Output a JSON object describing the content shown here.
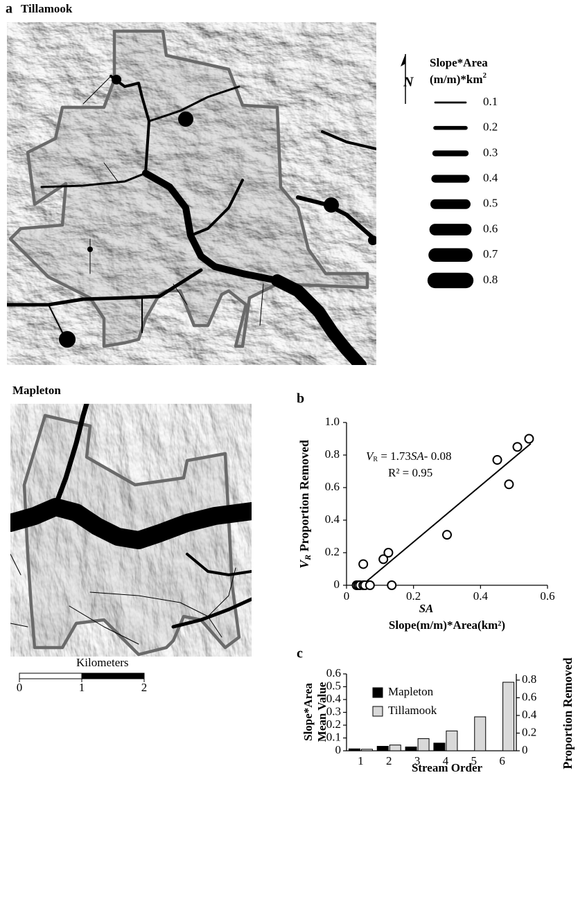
{
  "figure": {
    "panel_a": {
      "label": "a",
      "title": "Tillamook",
      "legend_title": "Slope*Area",
      "legend_unit": "(m/m)*km",
      "legend_unit_sup": "2",
      "legend_values": [
        0.1,
        0.2,
        0.3,
        0.4,
        0.5,
        0.6,
        0.7,
        0.8
      ]
    },
    "mapleton": {
      "title": "Mapleton"
    },
    "scale_bar": {
      "title": "Kilometers",
      "ticks": [
        0,
        1,
        2
      ]
    }
  },
  "chart_data": [
    {
      "type": "scatter",
      "panel_label": "b",
      "x": [
        0.03,
        0.035,
        0.04,
        0.05,
        0.055,
        0.07,
        0.135,
        0.05,
        0.11,
        0.125,
        0.3,
        0.45,
        0.485,
        0.51,
        0.545
      ],
      "values": [
        0,
        0,
        0,
        0,
        0,
        0,
        0,
        0.13,
        0.16,
        0.2,
        0.31,
        0.77,
        0.62,
        0.85,
        0.9
      ],
      "xlim": [
        0,
        0.6
      ],
      "ylim": [
        0,
        1
      ],
      "xticks": [
        0,
        0.2,
        0.4,
        0.6
      ],
      "yticks": [
        0,
        0.2,
        0.4,
        0.6,
        0.8,
        {
          "value": 1,
          "label": "1.0"
        }
      ],
      "y_label": [
        "V",
        "R",
        " Proportion Removed"
      ],
      "x_label_symbol": "SA",
      "x_label": "Slope(m/m)*Area(km²)",
      "equation": [
        "V",
        "R",
        " = 1.73",
        "SA",
        "- 0.08"
      ],
      "r_squared": "R² = 0.95",
      "trendline": {
        "x": [
          0.046,
          0.55
        ],
        "y": [
          0,
          0.87
        ]
      },
      "marker_color": "#000000"
    },
    {
      "type": "bar",
      "panel_label": "c",
      "categories": [
        "1",
        "2",
        "3",
        "4",
        "5",
        "6"
      ],
      "series": [
        {
          "name": "Mapleton",
          "color": "#000000",
          "values": [
            0.015,
            0.035,
            0.03,
            0.06,
            null,
            null
          ]
        },
        {
          "name": "Tillamook",
          "color": "#d9d9d9",
          "values": [
            0.012,
            0.045,
            0.095,
            0.155,
            0.265,
            0.535
          ]
        }
      ],
      "ylim": [
        0,
        0.6
      ],
      "yticks": [
        0,
        0.1,
        0.2,
        0.3,
        0.4,
        0.5,
        0.6
      ],
      "y2lim": [
        0,
        0.87
      ],
      "y2ticks": [
        0,
        0.2,
        0.4,
        0.6,
        0.8
      ],
      "y_label": [
        "Slope*Area",
        "Mean Value"
      ],
      "y2_label": "Proportion Removed",
      "x_label": "Stream Order",
      "legend": "upper-left"
    }
  ]
}
